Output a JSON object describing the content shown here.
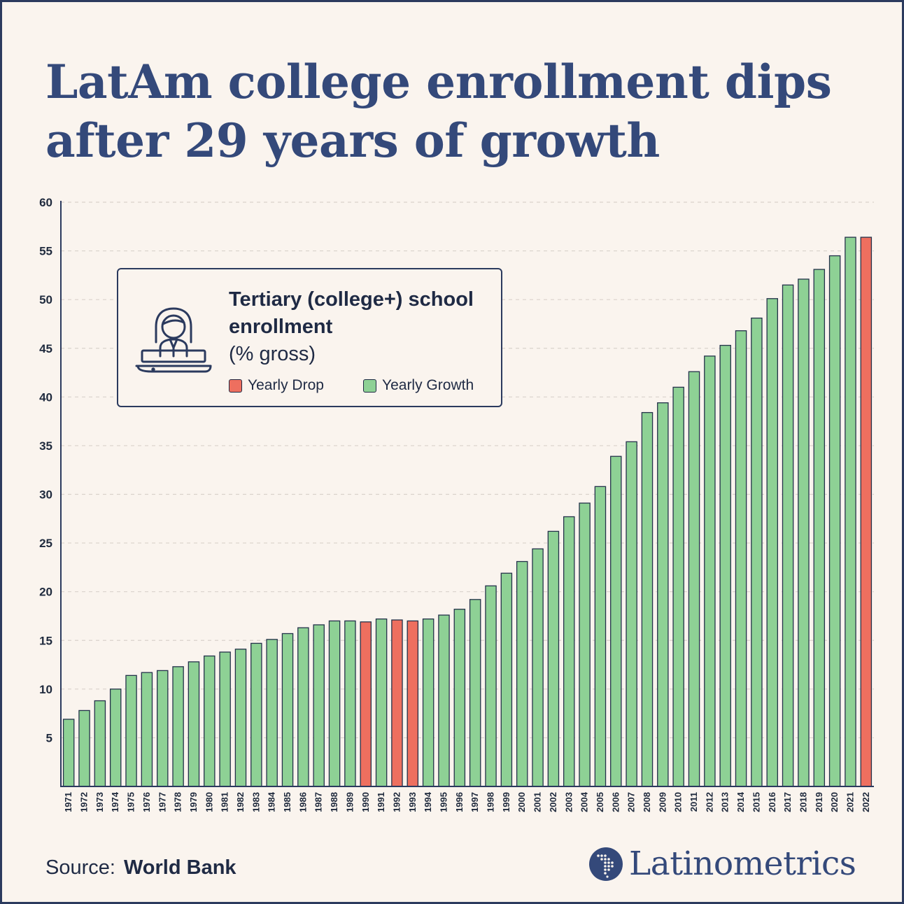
{
  "title": "LatAm college enrollment dips after 29 years of growth",
  "legend": {
    "title_strong": "Tertiary (college+) school enrollment",
    "title_light": "(% gross)",
    "drop_label": "Yearly Drop",
    "growth_label": "Yearly Growth",
    "drop_color": "#ee6f5f",
    "growth_color": "#8ed195"
  },
  "source": {
    "label": "Source:",
    "name": "World Bank"
  },
  "brand": {
    "name": "Latinometrics",
    "icon": "latin-america-map-icon"
  },
  "chart_data": {
    "type": "bar",
    "title": "Tertiary (college+) school enrollment (% gross)",
    "xlabel": "",
    "ylabel": "",
    "ylim": [
      0,
      60
    ],
    "yticks": [
      5,
      10,
      15,
      20,
      25,
      30,
      35,
      40,
      45,
      50,
      55,
      60
    ],
    "grid": true,
    "legend_position": "upper-left",
    "categories": [
      "1971",
      "1972",
      "1973",
      "1974",
      "1975",
      "1976",
      "1977",
      "1978",
      "1979",
      "1980",
      "1981",
      "1982",
      "1983",
      "1984",
      "1985",
      "1986",
      "1987",
      "1988",
      "1989",
      "1990",
      "1991",
      "1992",
      "1993",
      "1994",
      "1995",
      "1996",
      "1997",
      "1998",
      "1999",
      "2000",
      "2001",
      "2002",
      "2003",
      "2004",
      "2005",
      "2006",
      "2007",
      "2008",
      "2009",
      "2010",
      "2011",
      "2012",
      "2013",
      "2014",
      "2015",
      "2016",
      "2017",
      "2018",
      "2019",
      "2020",
      "2021",
      "2022"
    ],
    "values": [
      6.9,
      7.8,
      8.8,
      10.0,
      11.4,
      11.7,
      11.9,
      12.3,
      12.8,
      13.4,
      13.8,
      14.1,
      14.7,
      15.1,
      15.7,
      16.3,
      16.6,
      17.0,
      17.0,
      16.9,
      17.2,
      17.1,
      17.0,
      17.2,
      17.6,
      18.2,
      19.2,
      20.6,
      21.9,
      23.1,
      24.4,
      26.2,
      27.7,
      29.1,
      30.8,
      33.9,
      35.4,
      38.4,
      39.4,
      41.0,
      42.6,
      44.2,
      45.3,
      46.8,
      48.1,
      50.1,
      51.5,
      52.1,
      53.1,
      54.5,
      56.4,
      56.4
    ],
    "status": [
      "growth",
      "growth",
      "growth",
      "growth",
      "growth",
      "growth",
      "growth",
      "growth",
      "growth",
      "growth",
      "growth",
      "growth",
      "growth",
      "growth",
      "growth",
      "growth",
      "growth",
      "growth",
      "growth",
      "drop",
      "growth",
      "drop",
      "drop",
      "growth",
      "growth",
      "growth",
      "growth",
      "growth",
      "growth",
      "growth",
      "growth",
      "growth",
      "growth",
      "growth",
      "growth",
      "growth",
      "growth",
      "growth",
      "growth",
      "growth",
      "growth",
      "growth",
      "growth",
      "growth",
      "growth",
      "growth",
      "growth",
      "growth",
      "growth",
      "growth",
      "growth",
      "drop"
    ]
  }
}
